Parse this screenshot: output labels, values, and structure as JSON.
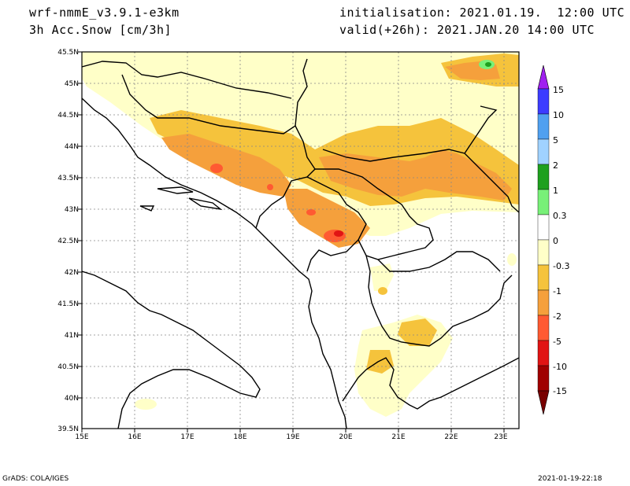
{
  "header": {
    "model": "wrf-nmmE_v3.9.1-e3km",
    "variable": "3h Acc.Snow [cm/3h]",
    "init": "initialisation: 2021.01.19.  12:00 UTC",
    "valid": "valid(+26h): 2021.JAN.20 14:00 UTC"
  },
  "footer": {
    "left": "GrADS: COLA/IGES",
    "right": "2021-01-19-22:18"
  },
  "map": {
    "lat_labels": [
      "45.5N",
      "45N",
      "44.5N",
      "44N",
      "43.5N",
      "43N",
      "42.5N",
      "42N",
      "41.5N",
      "41N",
      "40.5N",
      "40N",
      "39.5N"
    ],
    "lon_labels": [
      "15E",
      "16E",
      "17E",
      "18E",
      "19E",
      "20E",
      "21E",
      "22E",
      "23E"
    ]
  },
  "colorbar": {
    "levels": [
      "15",
      "10",
      "5",
      "2",
      "1",
      "0.3",
      "0",
      "-0.3",
      "-1",
      "-2",
      "-5",
      "-10",
      "-15"
    ],
    "colors": [
      "#a020f0",
      "#3c3cff",
      "#50a0f0",
      "#a0d2ff",
      "#1ea01e",
      "#78f078",
      "#ffffff",
      "#ffffc8",
      "#f5c33c",
      "#f5a03c",
      "#ff5a32",
      "#e11414",
      "#a00000",
      "#780000"
    ]
  }
}
